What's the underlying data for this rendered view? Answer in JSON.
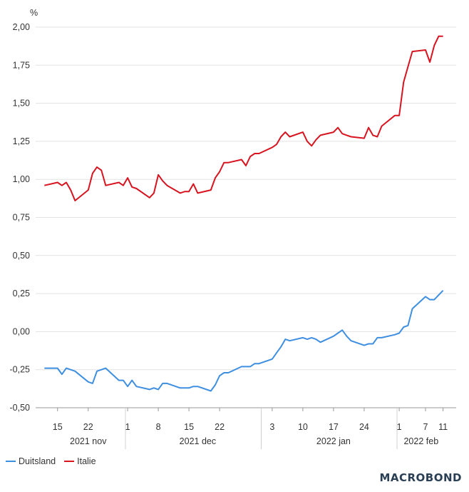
{
  "chart_data": {
    "type": "line",
    "unit": "%",
    "ylim": [
      -0.5,
      2.0
    ],
    "yticks": [
      2.0,
      1.75,
      1.5,
      1.25,
      1.0,
      0.75,
      0.5,
      0.25,
      0.0,
      -0.25,
      -0.5
    ],
    "ytick_labels": [
      "2,00",
      "1,75",
      "1,50",
      "1,25",
      "1,00",
      "0,75",
      "0,50",
      "0,25",
      "0,00",
      "-0,25",
      "-0,50"
    ],
    "grid": true,
    "x_day_labels": [
      {
        "date": "2021-11-15",
        "label": "15"
      },
      {
        "date": "2021-11-22",
        "label": "22"
      },
      {
        "date": "2021-12-01",
        "label": "1"
      },
      {
        "date": "2021-12-08",
        "label": "8"
      },
      {
        "date": "2021-12-15",
        "label": "15"
      },
      {
        "date": "2021-12-22",
        "label": "22"
      },
      {
        "date": "2022-01-03",
        "label": "3"
      },
      {
        "date": "2022-01-10",
        "label": "10"
      },
      {
        "date": "2022-01-17",
        "label": "17"
      },
      {
        "date": "2022-01-24",
        "label": "24"
      },
      {
        "date": "2022-02-01",
        "label": "1"
      },
      {
        "date": "2022-02-07",
        "label": "7"
      },
      {
        "date": "2022-02-11",
        "label": "11"
      }
    ],
    "x_month_labels": [
      {
        "date": "2021-11-22",
        "label": "2021 nov"
      },
      {
        "date": "2021-12-17",
        "label": "2021 dec"
      },
      {
        "date": "2022-01-17",
        "label": "2022 jan"
      },
      {
        "date": "2022-02-06",
        "label": "2022 feb"
      }
    ],
    "month_separators": [
      "2021-12-01",
      "2022-01-01",
      "2022-02-01"
    ],
    "x": [
      "2021-11-12",
      "2021-11-15",
      "2021-11-16",
      "2021-11-17",
      "2021-11-18",
      "2021-11-19",
      "2021-11-22",
      "2021-11-23",
      "2021-11-24",
      "2021-11-25",
      "2021-11-26",
      "2021-11-29",
      "2021-11-30",
      "2021-12-01",
      "2021-12-02",
      "2021-12-03",
      "2021-12-06",
      "2021-12-07",
      "2021-12-08",
      "2021-12-09",
      "2021-12-10",
      "2021-12-13",
      "2021-12-14",
      "2021-12-15",
      "2021-12-16",
      "2021-12-17",
      "2021-12-20",
      "2021-12-21",
      "2021-12-22",
      "2021-12-23",
      "2021-12-24",
      "2021-12-27",
      "2021-12-28",
      "2021-12-29",
      "2021-12-30",
      "2021-12-31",
      "2022-01-03",
      "2022-01-04",
      "2022-01-05",
      "2022-01-06",
      "2022-01-07",
      "2022-01-10",
      "2022-01-11",
      "2022-01-12",
      "2022-01-13",
      "2022-01-14",
      "2022-01-17",
      "2022-01-18",
      "2022-01-19",
      "2022-01-20",
      "2022-01-21",
      "2022-01-24",
      "2022-01-25",
      "2022-01-26",
      "2022-01-27",
      "2022-01-28",
      "2022-01-31",
      "2022-02-01",
      "2022-02-02",
      "2022-02-03",
      "2022-02-04",
      "2022-02-07",
      "2022-02-08",
      "2022-02-09",
      "2022-02-10",
      "2022-02-11"
    ],
    "series": [
      {
        "name": "Duitsland",
        "color": "#3f8fe0",
        "values": [
          -0.24,
          -0.24,
          -0.28,
          -0.24,
          -0.25,
          -0.26,
          -0.33,
          -0.34,
          -0.26,
          -0.25,
          -0.24,
          -0.32,
          -0.32,
          -0.36,
          -0.32,
          -0.36,
          -0.38,
          -0.37,
          -0.38,
          -0.34,
          -0.34,
          -0.37,
          -0.37,
          -0.37,
          -0.36,
          -0.36,
          -0.39,
          -0.35,
          -0.29,
          -0.27,
          -0.27,
          -0.23,
          -0.23,
          -0.23,
          -0.21,
          -0.21,
          -0.18,
          -0.14,
          -0.1,
          -0.05,
          -0.06,
          -0.04,
          -0.05,
          -0.04,
          -0.05,
          -0.07,
          -0.03,
          -0.01,
          0.01,
          -0.03,
          -0.06,
          -0.09,
          -0.08,
          -0.08,
          -0.04,
          -0.04,
          -0.02,
          -0.01,
          0.03,
          0.04,
          0.15,
          0.23,
          0.21,
          0.21,
          0.24,
          0.27
        ]
      },
      {
        "name": "Italie",
        "color": "#d7141f",
        "values": [
          0.96,
          0.98,
          0.96,
          0.98,
          0.93,
          0.86,
          0.93,
          1.04,
          1.08,
          1.06,
          0.96,
          0.98,
          0.96,
          1.01,
          0.95,
          0.94,
          0.88,
          0.91,
          1.03,
          0.99,
          0.96,
          0.91,
          0.92,
          0.92,
          0.97,
          0.91,
          0.93,
          1.01,
          1.05,
          1.11,
          1.11,
          1.13,
          1.09,
          1.15,
          1.17,
          1.17,
          1.21,
          1.23,
          1.28,
          1.31,
          1.28,
          1.31,
          1.25,
          1.22,
          1.26,
          1.29,
          1.31,
          1.34,
          1.3,
          1.29,
          1.28,
          1.27,
          1.34,
          1.29,
          1.28,
          1.35,
          1.42,
          1.42,
          1.64,
          1.74,
          1.84,
          1.85,
          1.77,
          1.88,
          1.94,
          1.94
        ]
      }
    ]
  },
  "legend": [
    {
      "label": "Duitsland",
      "color": "#3f8fe0"
    },
    {
      "label": "Italie",
      "color": "#d7141f"
    }
  ],
  "brand": "MACROBOND"
}
